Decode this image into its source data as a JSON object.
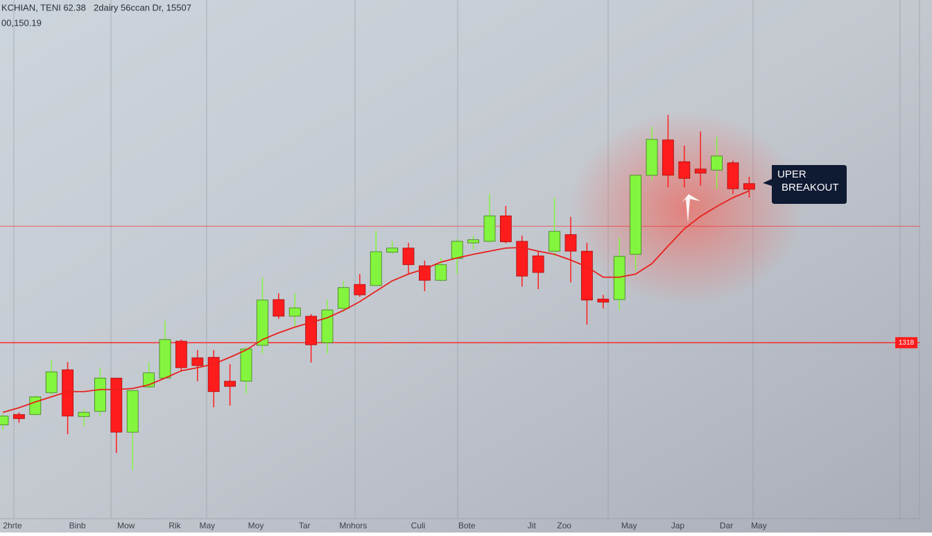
{
  "chart_data": {
    "type": "candlestick",
    "title": "KCHIAN, TENI 62.38",
    "subtitle": "2dairy 56ccan Dr, 15507",
    "price": "00,150.19",
    "categories": [
      "2hrte",
      null,
      null,
      null,
      "Binb",
      null,
      null,
      "Mow",
      null,
      null,
      "Rik",
      null,
      "May",
      null,
      null,
      "Moy",
      null,
      null,
      "Tar",
      null,
      null,
      "Mnhors",
      null,
      null,
      null,
      "Culi",
      null,
      null,
      "Bote",
      null,
      null,
      null,
      "Jit",
      null,
      "Zoo",
      null,
      null,
      null,
      "May",
      null,
      null,
      "Jap",
      null,
      null,
      "Dar",
      null,
      "May"
    ],
    "open": [
      18.3,
      20.3,
      20.3,
      24.5,
      28.9,
      19.9,
      20.9,
      27.3,
      16.9,
      25.6,
      27.3,
      34.4,
      31.2,
      31.3,
      26.7,
      26.7,
      33.6,
      42.4,
      39.2,
      39.2,
      34.1,
      40.7,
      45.3,
      45.1,
      51.5,
      52.3,
      48.9,
      46.1,
      50.3,
      53.3,
      53.6,
      58.5,
      53.6,
      50.8,
      51.7,
      54.9,
      51.7,
      42.5,
      42.4,
      51.1,
      66.3,
      73.1,
      68.9,
      67.5,
      67.3,
      68.7,
      64.7
    ],
    "high": [
      20.3,
      20.7,
      24.0,
      30.7,
      30.4,
      21.3,
      29.3,
      27.3,
      24.9,
      30.4,
      38.3,
      34.7,
      32.7,
      32.7,
      30.0,
      33.3,
      46.7,
      43.6,
      43.6,
      39.6,
      42.4,
      46.0,
      47.3,
      55.6,
      53.6,
      53.3,
      49.9,
      50.4,
      54.0,
      54.7,
      62.7,
      60.4,
      54.7,
      51.7,
      62.0,
      58.3,
      53.3,
      43.3,
      54.3,
      66.3,
      75.6,
      77.9,
      72.0,
      74.7,
      73.7,
      69.1,
      66.0
    ],
    "low": [
      17.3,
      18.7,
      20.0,
      24.0,
      16.5,
      18.0,
      20.0,
      12.9,
      9.6,
      25.3,
      27.3,
      28.7,
      26.7,
      21.7,
      22.0,
      24.3,
      32.0,
      38.7,
      37.3,
      30.3,
      32.0,
      40.0,
      42.9,
      45.1,
      51.2,
      47.3,
      44.0,
      45.9,
      47.3,
      52.0,
      53.3,
      53.2,
      44.9,
      44.4,
      50.7,
      45.7,
      37.6,
      40.7,
      40.4,
      48.0,
      65.3,
      64.0,
      64.0,
      64.3,
      63.7,
      62.7,
      62.0
    ],
    "close": [
      20.0,
      19.5,
      23.7,
      28.5,
      20.0,
      20.7,
      27.3,
      16.9,
      24.9,
      28.3,
      34.7,
      29.3,
      29.7,
      24.7,
      25.7,
      32.9,
      42.3,
      39.2,
      40.8,
      33.7,
      40.4,
      44.7,
      43.3,
      51.6,
      52.3,
      49.1,
      46.1,
      49.1,
      53.6,
      53.9,
      58.5,
      53.5,
      46.9,
      47.6,
      55.5,
      51.7,
      42.3,
      41.9,
      50.7,
      66.3,
      73.2,
      66.3,
      65.7,
      66.7,
      70.0,
      63.7,
      63.6
    ],
    "up_color": "#84f53e",
    "down_color": "#ff1c1c",
    "moving_average": {
      "color": "#e8201c",
      "values": [
        20.7,
        21.6,
        22.7,
        23.7,
        24.7,
        24.7,
        25.1,
        25.1,
        25.3,
        26.0,
        27.3,
        28.7,
        29.3,
        30.0,
        31.3,
        32.7,
        34.7,
        36.0,
        37.1,
        38.0,
        38.9,
        40.3,
        42.0,
        44.0,
        46.0,
        47.3,
        48.3,
        49.6,
        50.4,
        51.1,
        51.7,
        52.3,
        52.4,
        51.7,
        51.1,
        50.0,
        48.7,
        46.7,
        46.7,
        47.3,
        49.3,
        52.7,
        56.0,
        58.4,
        60.3,
        62.0,
        63.3
      ]
    },
    "levels": [
      34.1,
      56.5
    ],
    "level_label": "1318",
    "annotation": [
      "UPER",
      "BREAKOUT"
    ],
    "ylim": [
      0,
      100
    ]
  }
}
